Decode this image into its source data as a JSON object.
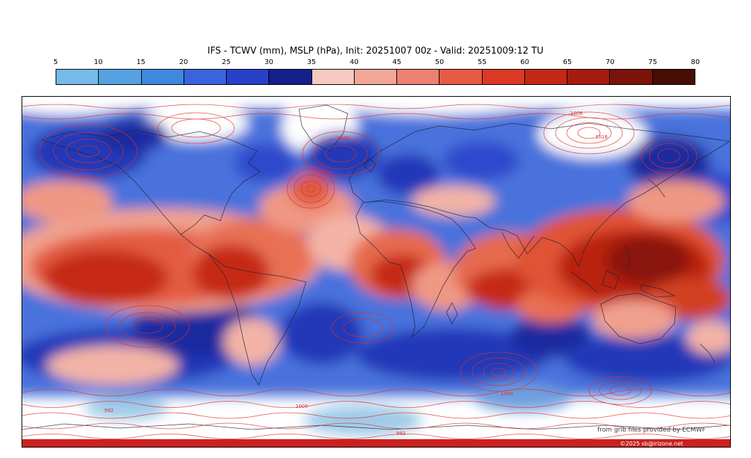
{
  "header": {
    "title": "IFS - TCWV (mm), MSLP (hPa), Init: 20251007 00z - Valid: 20251009:12 TU"
  },
  "attribution": {
    "source": "from grib files provided by ECMWF",
    "copyright": "©2025 sb@irizone.net"
  },
  "chart_data": {
    "type": "heatmap",
    "title": "IFS - TCWV (mm), MSLP (hPa), Init: 20251007 00z - Valid: 20251009:12 TU",
    "model": "IFS",
    "variable": "TCWV",
    "units": "mm",
    "init": "20251007 00z",
    "valid": "20251009:12 TU",
    "overlay_variable": "MSLP",
    "overlay_units": "hPa",
    "projection": "global equirectangular",
    "colorbar_range": [
      5,
      80
    ],
    "levels": [
      5,
      10,
      15,
      20,
      25,
      30,
      35,
      40,
      45,
      50,
      55,
      60,
      65,
      70,
      75,
      80
    ],
    "colors": [
      "#74bbe8",
      "#55a1e2",
      "#3f88de",
      "#3a64de",
      "#2740c8",
      "#141f8c",
      "#f6c9c2",
      "#f2a797",
      "#ec8170",
      "#e55b45",
      "#da3a23",
      "#c42817",
      "#a51c0e",
      "#7c130a",
      "#470d06"
    ],
    "legend_position": "top",
    "grid": false,
    "mslp_contour_labels": [
      "1008",
      "1016",
      "1000",
      "992",
      "1000",
      "1004",
      "992"
    ]
  }
}
